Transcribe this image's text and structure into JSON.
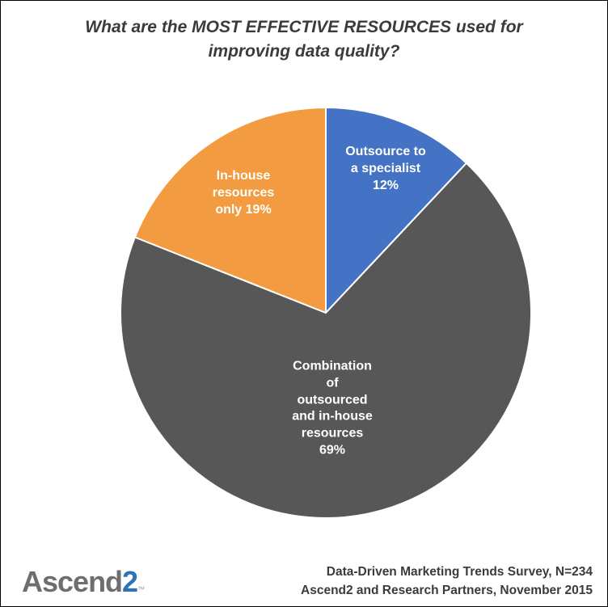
{
  "title": {
    "text": "What are the MOST EFFECTIVE RESOURCES used for\nimproving data quality?"
  },
  "chart_data": {
    "type": "pie",
    "title": "What are the MOST EFFECTIVE RESOURCES used for improving data quality?",
    "start_angle_deg": 0,
    "direction": "clockwise",
    "legend": "none",
    "label_color": "#FFFFFF",
    "slices": [
      {
        "label": "Outsource to a specialist",
        "value": 12,
        "color": "#4472C4",
        "label_lines": "Outsource to\na specialist\n12%"
      },
      {
        "label": "Combination of outsourced and in-house resources",
        "value": 69,
        "color": "#575757",
        "label_lines": "Combination\nof\noutsourced\nand in-house\nresources\n69%"
      },
      {
        "label": "In-house resources only",
        "value": 19,
        "color": "#F29B40",
        "label_lines": "In-house\nresources\nonly 19%"
      }
    ]
  },
  "footer": {
    "source_line1": "Data-Driven Marketing Trends Survey, N=234",
    "source_line2": "Ascend2 and Research Partners, November 2015"
  },
  "logo": {
    "text_gray": "Ascend",
    "text_blue": "2",
    "trademark": "™",
    "gray_color": "#6D6E71",
    "blue_color": "#2E74B5"
  }
}
